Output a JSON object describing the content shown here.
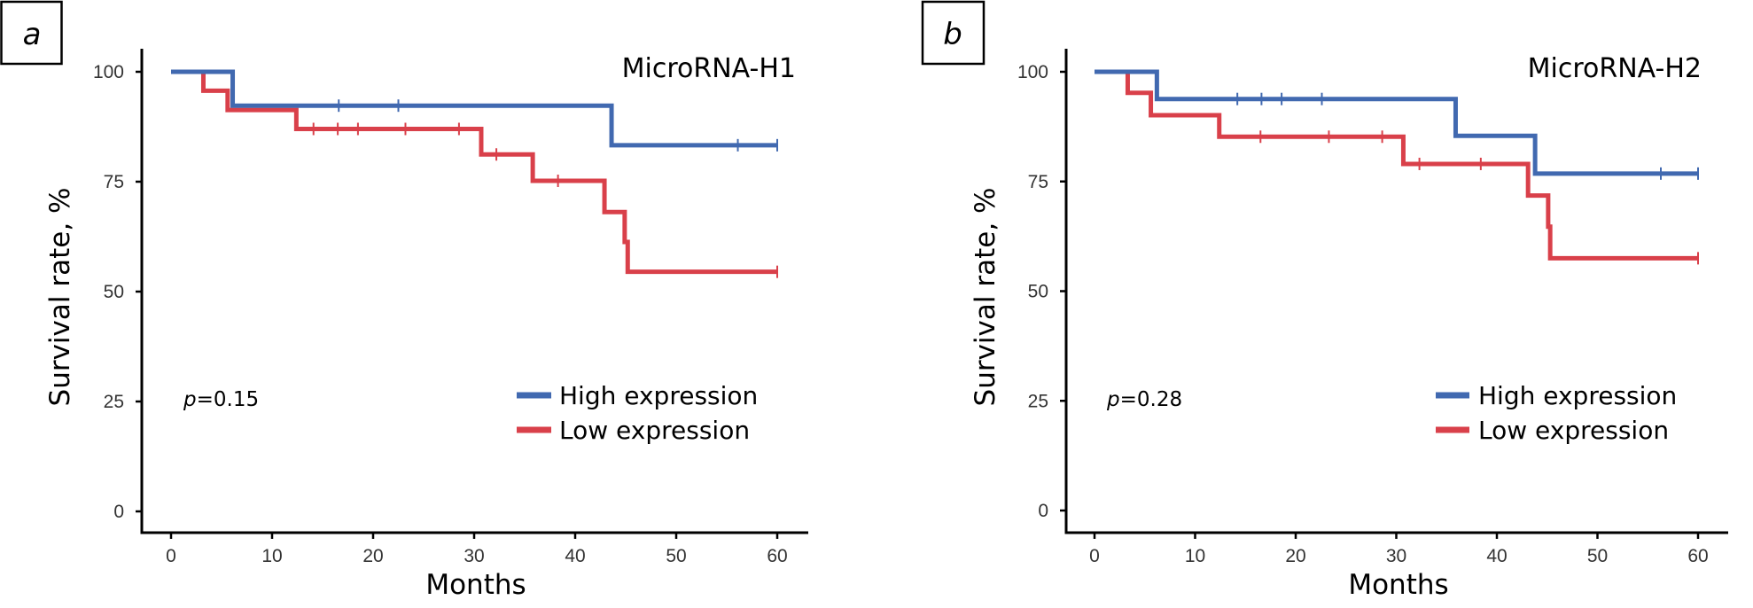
{
  "figure": {
    "panels": [
      "a",
      "b"
    ]
  },
  "chart_data": [
    {
      "type": "line",
      "subtype": "kaplan-meier-step",
      "panel_label": "a",
      "title": "MicroRNA-H1",
      "xlabel": "Months",
      "ylabel": "Survival rate, %",
      "xlim": [
        0,
        60
      ],
      "ylim": [
        0,
        100
      ],
      "xticks": [
        0,
        10,
        20,
        30,
        40,
        50,
        60
      ],
      "yticks": [
        0,
        25,
        50,
        75,
        100
      ],
      "grid": false,
      "legend_position": "bottom-right",
      "annotation": {
        "p_label": "p",
        "p_value_text": "=0.15"
      },
      "series": [
        {
          "name": "High expression",
          "color": "#4169b0",
          "steps": [
            [
              0,
              100
            ],
            [
              6.1,
              92.3
            ],
            [
              43.6,
              83.3
            ],
            [
              60,
              83.3
            ]
          ],
          "censored": [
            [
              16.6,
              92.3
            ],
            [
              22.5,
              92.3
            ],
            [
              56.1,
              83.3
            ],
            [
              60,
              83.3
            ]
          ]
        },
        {
          "name": "Low expression",
          "color": "#d9404a",
          "steps": [
            [
              0,
              100
            ],
            [
              3.2,
              95.7
            ],
            [
              5.6,
              91.3
            ],
            [
              12.4,
              87.0
            ],
            [
              30.7,
              81.2
            ],
            [
              35.8,
              75.2
            ],
            [
              42.9,
              68.1
            ],
            [
              44.9,
              61.3
            ],
            [
              45.2,
              54.5
            ],
            [
              60,
              54.5
            ]
          ],
          "censored": [
            [
              14.1,
              87.0
            ],
            [
              16.5,
              87.0
            ],
            [
              18.5,
              87.0
            ],
            [
              23.2,
              87.0
            ],
            [
              28.5,
              87.0
            ],
            [
              32.2,
              81.2
            ],
            [
              38.3,
              75.2
            ],
            [
              60,
              54.5
            ]
          ]
        }
      ]
    },
    {
      "type": "line",
      "subtype": "kaplan-meier-step",
      "panel_label": "b",
      "title": "MicroRNA-H2",
      "xlabel": "Months",
      "ylabel": "Survival rate, %",
      "xlim": [
        0,
        60
      ],
      "ylim": [
        0,
        100
      ],
      "xticks": [
        0,
        10,
        20,
        30,
        40,
        50,
        60
      ],
      "yticks": [
        0,
        25,
        50,
        75,
        100
      ],
      "grid": false,
      "legend_position": "bottom-right",
      "annotation": {
        "p_label": "p",
        "p_value_text": "=0.28"
      },
      "series": [
        {
          "name": "High expression",
          "color": "#4169b0",
          "steps": [
            [
              0,
              100
            ],
            [
              6.2,
              93.8
            ],
            [
              35.9,
              85.4
            ],
            [
              43.8,
              76.8
            ],
            [
              60,
              76.8
            ]
          ],
          "censored": [
            [
              14.2,
              93.8
            ],
            [
              16.6,
              93.8
            ],
            [
              18.6,
              93.8
            ],
            [
              22.6,
              93.8
            ],
            [
              56.3,
              76.8
            ],
            [
              60,
              76.8
            ]
          ]
        },
        {
          "name": "Low expression",
          "color": "#d9404a",
          "steps": [
            [
              0,
              100
            ],
            [
              3.3,
              95.2
            ],
            [
              5.6,
              90.1
            ],
            [
              12.4,
              85.2
            ],
            [
              30.7,
              79.0
            ],
            [
              43.1,
              71.8
            ],
            [
              45.1,
              64.7
            ],
            [
              45.3,
              57.5
            ],
            [
              60,
              57.5
            ]
          ],
          "censored": [
            [
              16.5,
              85.2
            ],
            [
              23.3,
              85.2
            ],
            [
              28.6,
              85.2
            ],
            [
              32.3,
              79.0
            ],
            [
              38.4,
              79.0
            ],
            [
              60,
              57.5
            ]
          ]
        }
      ]
    }
  ]
}
